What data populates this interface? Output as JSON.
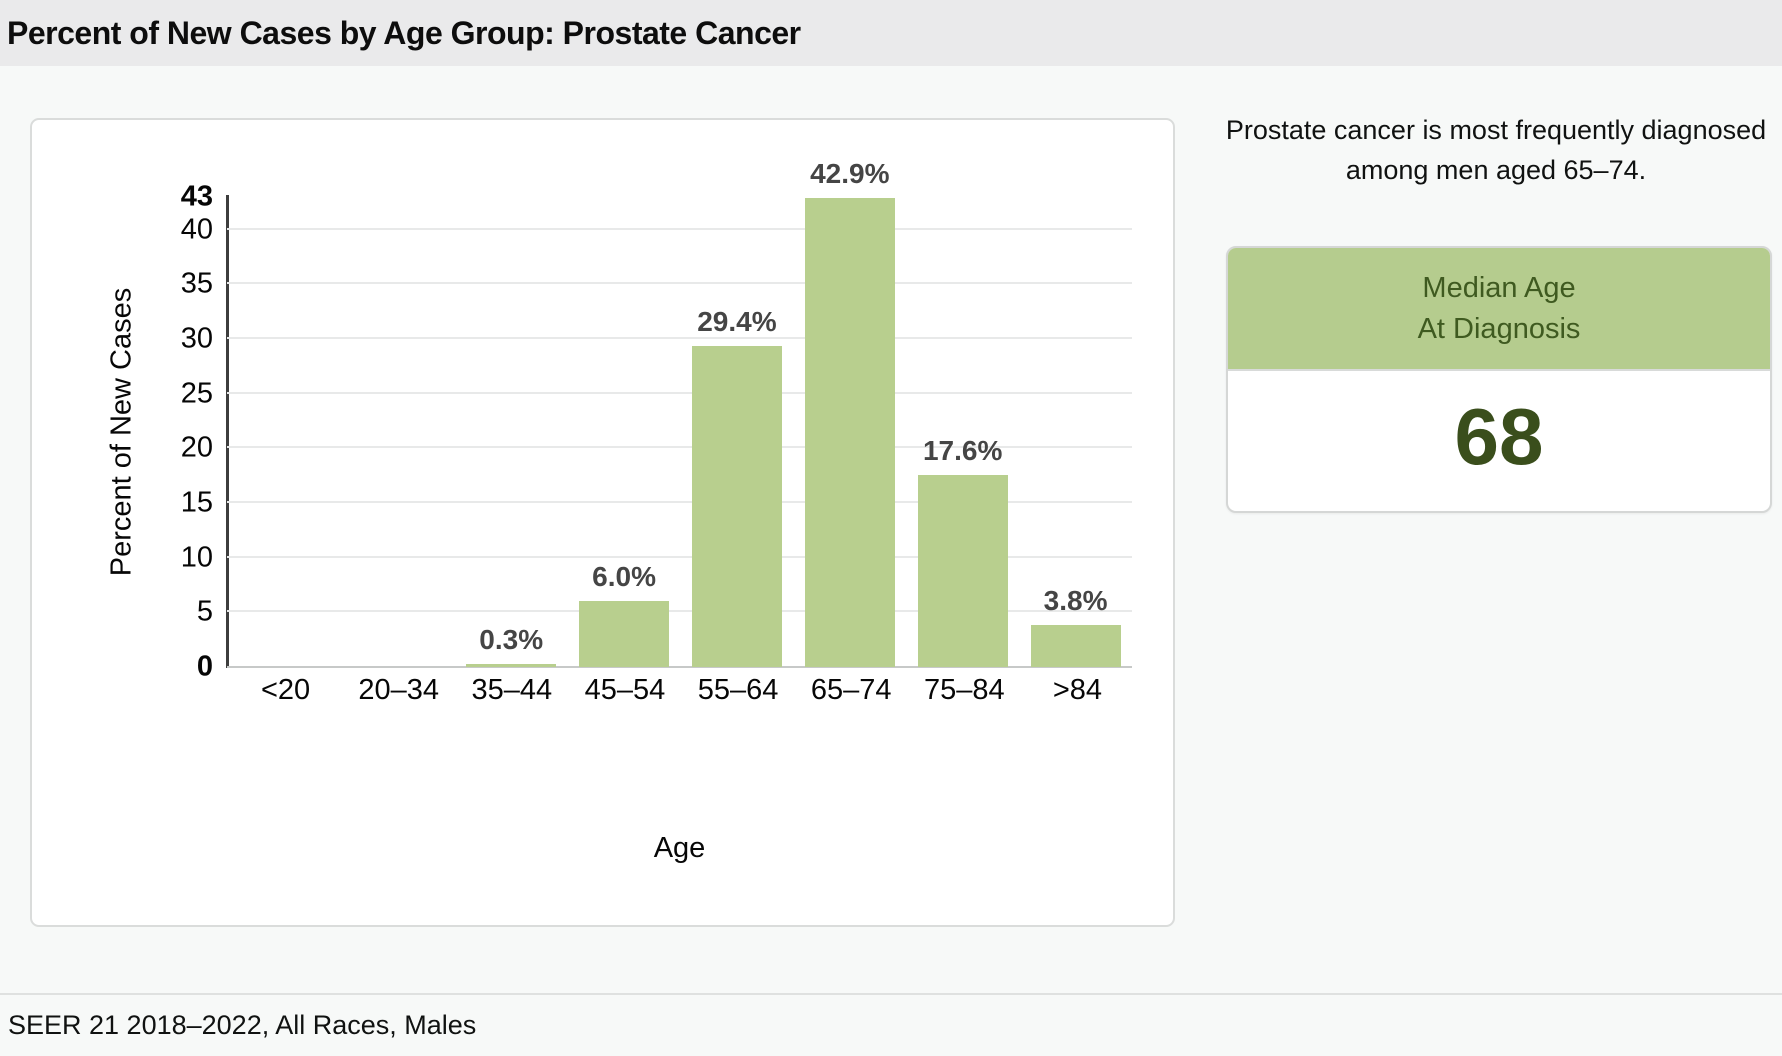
{
  "header": {
    "title": "Percent of New Cases by Age Group: Prostate Cancer"
  },
  "chart_data": {
    "type": "bar",
    "categories": [
      "<20",
      "20–34",
      "35–44",
      "45–54",
      "55–64",
      "65–74",
      "75–84",
      ">84"
    ],
    "values": [
      0,
      0,
      0.3,
      6.0,
      29.4,
      42.9,
      17.6,
      3.8
    ],
    "value_labels": [
      "",
      "",
      "0.3%",
      "6.0%",
      "29.4%",
      "42.9%",
      "17.6%",
      "3.8%"
    ],
    "title": "Percent of New Cases by Age Group: Prostate Cancer",
    "xlabel": "Age",
    "ylabel": "Percent of New Cases",
    "ylim": [
      0,
      43
    ],
    "yticks": [
      0,
      5,
      10,
      15,
      20,
      25,
      30,
      35,
      40
    ],
    "ymax_label": "43",
    "grid": true,
    "legend": "none"
  },
  "summary": {
    "intro": "Prostate cancer is most frequently diagnosed among men aged 65–74.",
    "median_card": {
      "title_line1": "Median Age",
      "title_line2": "At Diagnosis",
      "value": "68"
    }
  },
  "footer": {
    "source": "SEER 21 2018–2022, All Races, Males"
  },
  "colors": {
    "bar_green": "#b8cf8e",
    "card_header_green": "#b5cc8e",
    "card_title_green": "#3f5a20",
    "median_value_green": "#3a4e1c",
    "title_strip_gray": "#eaeaeb",
    "page_background": "#f7f9f8"
  }
}
